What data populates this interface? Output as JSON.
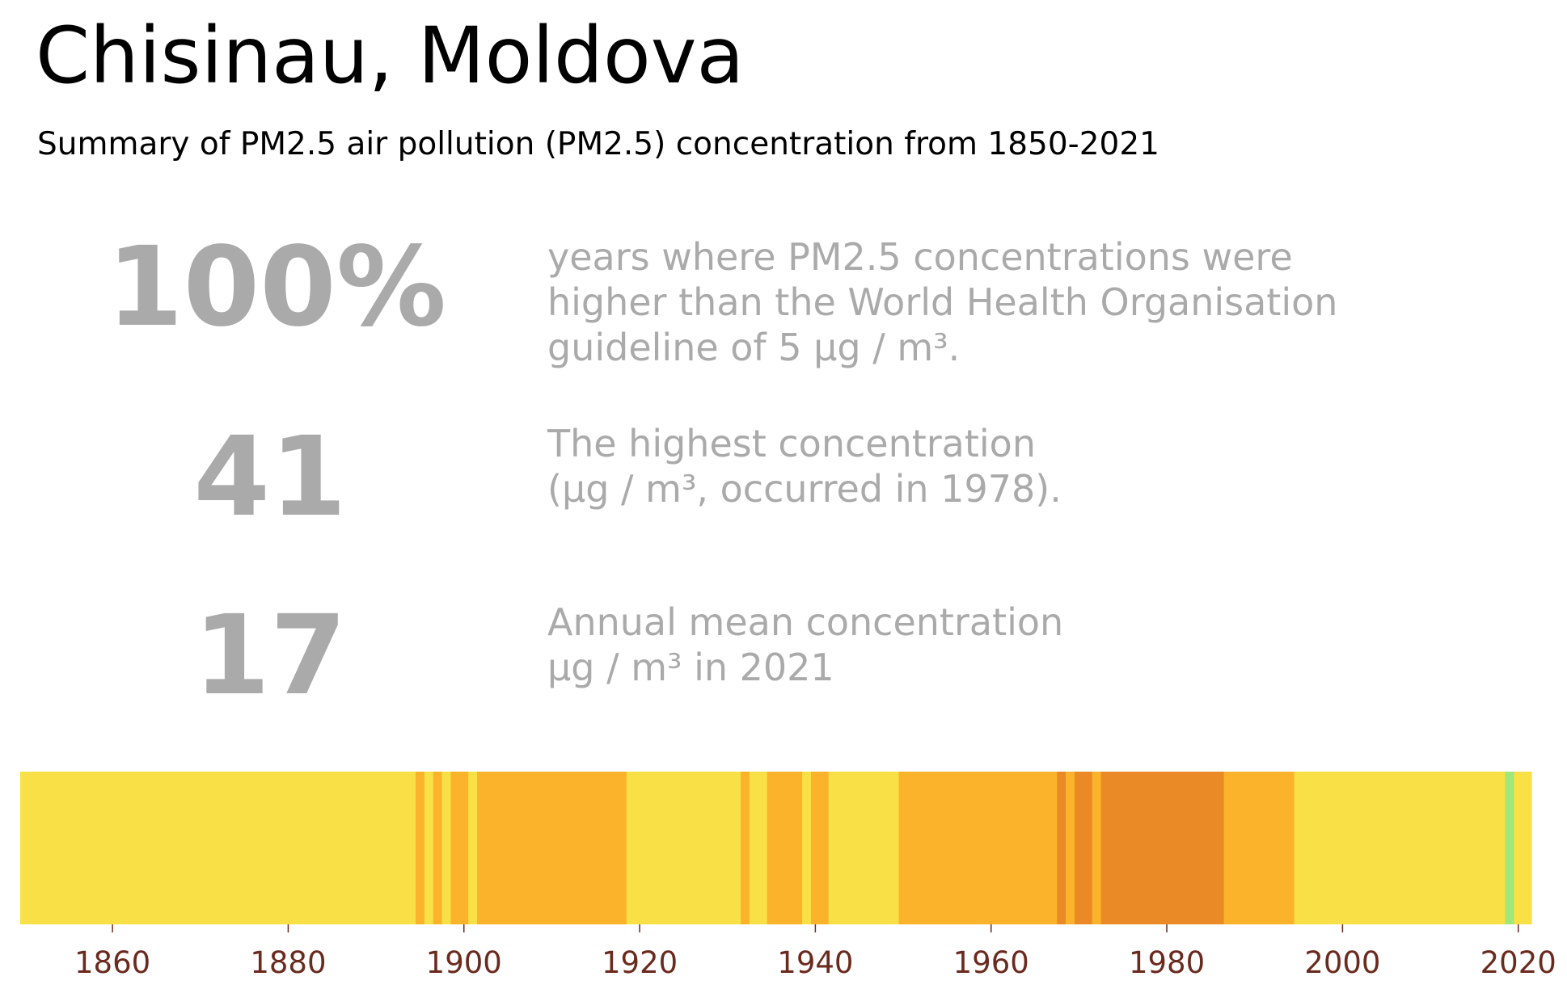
{
  "header": {
    "title": "Chisinau, Moldova",
    "subtitle": "Summary of PM2.5 air pollution (PM2.5) concentration from 1850-2021"
  },
  "stats": [
    {
      "value": "100%",
      "lines": [
        "years where PM2.5 concentrations were",
        "higher than the World Health Organisation",
        "guideline of 5 µg / m³."
      ]
    },
    {
      "value": "41",
      "lines": [
        "The highest concentration",
        "(µg / m³, occurred in 1978)."
      ]
    },
    {
      "value": "17",
      "lines": [
        "Annual mean concentration",
        "µg / m³ in 2021"
      ]
    }
  ],
  "chart_data": {
    "type": "heatmap",
    "title": "",
    "xlabel": "",
    "ylabel": "",
    "xlim": [
      1850,
      2022
    ],
    "xticks": [
      1860,
      1880,
      1900,
      1920,
      1940,
      1960,
      1980,
      2000,
      2020
    ],
    "grid": false,
    "legend": "none",
    "colors": {
      "yellow": "#f9e046",
      "orange": "#fcb32c",
      "dark_orange": "#ea8a26",
      "green": "#9de77b"
    },
    "segments": [
      {
        "start": 1850,
        "end": 1895,
        "color": "yellow"
      },
      {
        "start": 1895,
        "end": 1896,
        "color": "orange"
      },
      {
        "start": 1896,
        "end": 1897,
        "color": "yellow"
      },
      {
        "start": 1897,
        "end": 1898,
        "color": "orange"
      },
      {
        "start": 1898,
        "end": 1899,
        "color": "yellow"
      },
      {
        "start": 1899,
        "end": 1901,
        "color": "orange"
      },
      {
        "start": 1901,
        "end": 1902,
        "color": "yellow"
      },
      {
        "start": 1902,
        "end": 1919,
        "color": "orange"
      },
      {
        "start": 1919,
        "end": 1932,
        "color": "yellow"
      },
      {
        "start": 1932,
        "end": 1933,
        "color": "orange"
      },
      {
        "start": 1933,
        "end": 1935,
        "color": "yellow"
      },
      {
        "start": 1935,
        "end": 1939,
        "color": "orange"
      },
      {
        "start": 1939,
        "end": 1940,
        "color": "yellow"
      },
      {
        "start": 1940,
        "end": 1942,
        "color": "orange"
      },
      {
        "start": 1942,
        "end": 1950,
        "color": "yellow"
      },
      {
        "start": 1950,
        "end": 1968,
        "color": "orange"
      },
      {
        "start": 1968,
        "end": 1969,
        "color": "dark_orange"
      },
      {
        "start": 1969,
        "end": 1970,
        "color": "orange"
      },
      {
        "start": 1970,
        "end": 1972,
        "color": "dark_orange"
      },
      {
        "start": 1972,
        "end": 1973,
        "color": "orange"
      },
      {
        "start": 1973,
        "end": 1987,
        "color": "dark_orange"
      },
      {
        "start": 1987,
        "end": 1995,
        "color": "orange"
      },
      {
        "start": 1995,
        "end": 2019,
        "color": "yellow"
      },
      {
        "start": 2019,
        "end": 2020,
        "color": "green"
      },
      {
        "start": 2020,
        "end": 2022,
        "color": "yellow"
      }
    ]
  }
}
